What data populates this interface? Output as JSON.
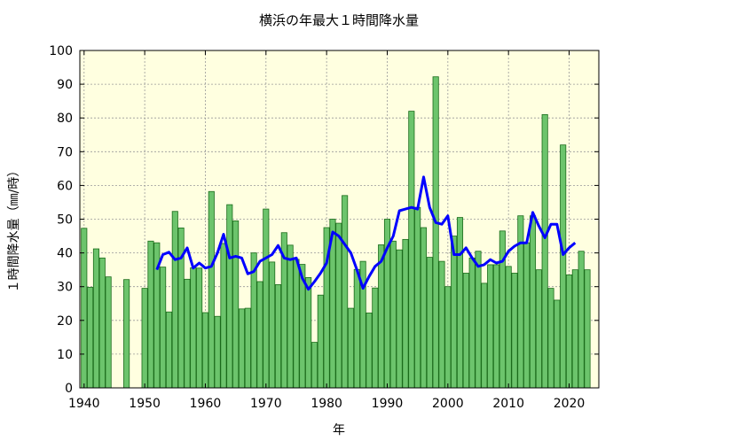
{
  "chart_data": {
    "type": "bar",
    "title": "横浜の年最大１時間降水量",
    "xlabel": "年",
    "ylabel": "１時間降水量（㎜/時）",
    "xlim": [
      1939.3,
      2024.9
    ],
    "ylim": [
      0,
      100
    ],
    "xticks": [
      1940,
      1950,
      1960,
      1970,
      1980,
      1990,
      2000,
      2010,
      2020
    ],
    "yticks": [
      0,
      10,
      20,
      30,
      40,
      50,
      60,
      70,
      80,
      90,
      100
    ],
    "grid": true,
    "legend": "none",
    "colors": {
      "plot_bg": "#ffffe0",
      "bar_fill": "#6cc46c",
      "bar_edge": "#1a6b1a",
      "line": "#0000ff",
      "grid": "#999999"
    },
    "series": [
      {
        "type": "bar",
        "x": [
          1940,
          1941,
          1942,
          1943,
          1944,
          1947,
          1950,
          1951,
          1952,
          1953,
          1954,
          1955,
          1956,
          1957,
          1958,
          1959,
          1960,
          1961,
          1962,
          1963,
          1964,
          1965,
          1966,
          1967,
          1968,
          1969,
          1970,
          1971,
          1972,
          1973,
          1974,
          1975,
          1976,
          1977,
          1978,
          1979,
          1980,
          1981,
          1982,
          1983,
          1984,
          1985,
          1986,
          1987,
          1988,
          1989,
          1990,
          1991,
          1992,
          1993,
          1994,
          1995,
          1996,
          1997,
          1998,
          1999,
          2000,
          2001,
          2002,
          2003,
          2004,
          2005,
          2006,
          2007,
          2008,
          2009,
          2010,
          2011,
          2012,
          2013,
          2014,
          2015,
          2016,
          2017,
          2018,
          2019,
          2020,
          2021,
          2022,
          2023
        ],
        "values": [
          47.3,
          29.8,
          41.2,
          38.5,
          32.9,
          32.1,
          29.5,
          43.5,
          43.0,
          35.8,
          22.5,
          52.3,
          47.4,
          32.2,
          35.6,
          35.5,
          22.3,
          58.2,
          21.2,
          42.8,
          54.3,
          49.5,
          23.4,
          23.6,
          40.0,
          31.5,
          53.0,
          37.3,
          30.6,
          46.0,
          42.3,
          38.1,
          36.6,
          32.7,
          13.5,
          27.5,
          47.5,
          50.0,
          48.8,
          57.0,
          23.6,
          35.1,
          37.5,
          22.2,
          29.6,
          42.4,
          50.0,
          43.5,
          40.9,
          44.0,
          82.0,
          53.5,
          47.5,
          38.7,
          92.2,
          37.5,
          30.0,
          45.0,
          50.5,
          34.0,
          38.5,
          40.5,
          31.0,
          36.5,
          36.5,
          46.5,
          36.0,
          34.0,
          51.0,
          43.0,
          51.0,
          35.0,
          81.0,
          29.5,
          26.0,
          72.0,
          33.5,
          35.0,
          40.5,
          35.0
        ]
      },
      {
        "type": "line",
        "x": [
          1952,
          1953,
          1954,
          1955,
          1956,
          1957,
          1958,
          1959,
          1960,
          1961,
          1962,
          1963,
          1964,
          1965,
          1966,
          1967,
          1968,
          1969,
          1970,
          1971,
          1972,
          1973,
          1974,
          1975,
          1976,
          1977,
          1978,
          1979,
          1980,
          1981,
          1982,
          1983,
          1984,
          1985,
          1986,
          1987,
          1988,
          1989,
          1990,
          1991,
          1992,
          1993,
          1994,
          1995,
          1996,
          1997,
          1998,
          1999,
          2000,
          2001,
          2002,
          2003,
          2004,
          2005,
          2006,
          2007,
          2008,
          2009,
          2010,
          2011,
          2012,
          2013,
          2014,
          2015,
          2016,
          2017,
          2018,
          2019,
          2020,
          2021
        ],
        "values": [
          35.0,
          39.5,
          40.2,
          38.0,
          38.5,
          41.5,
          35.5,
          37.0,
          35.5,
          36.0,
          40.0,
          45.5,
          38.5,
          39.0,
          38.5,
          33.8,
          34.5,
          37.5,
          38.5,
          39.5,
          42.2,
          38.5,
          38.0,
          38.5,
          32.5,
          29.2,
          31.5,
          34.0,
          37.0,
          46.2,
          45.0,
          42.5,
          40.0,
          35.0,
          29.5,
          33.0,
          36.0,
          37.5,
          41.5,
          45.0,
          52.5,
          53.0,
          53.5,
          53.0,
          62.5,
          53.5,
          49.0,
          48.5,
          51.0,
          39.5,
          39.5,
          41.5,
          38.5,
          36.0,
          36.5,
          38.0,
          37.0,
          37.5,
          40.5,
          42.0,
          43.0,
          43.0,
          52.0,
          48.0,
          44.5,
          48.5,
          48.5,
          39.5,
          41.5,
          43.0
        ]
      }
    ]
  }
}
